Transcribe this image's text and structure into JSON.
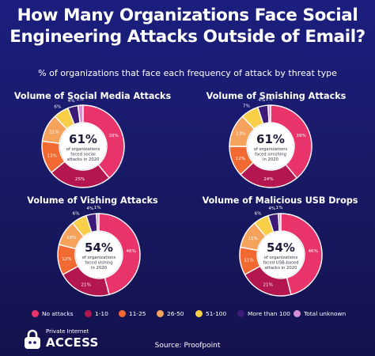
{
  "title": "How Many Organizations Face Social Engineering Attacks Outside of Email?",
  "subtitle": "% of organizations that face each frequency of attack by threat type",
  "source": "Source: Proofpoint",
  "brand": {
    "line1": "Private Internet",
    "line2": "ACCESS"
  },
  "colors": {
    "No attacks": "#e9336b",
    "1-10": "#b4164f",
    "11-25": "#f26a32",
    "26-50": "#f5a25c",
    "51-100": "#f8cf47",
    "More than 100": "#3d1a78",
    "Total unknown": "#d890d5"
  },
  "chart_data": [
    {
      "type": "pie",
      "title": "Volume of Social Media Attacks",
      "categories": [
        "No attacks",
        "1-10",
        "11-25",
        "26-50",
        "51-100",
        "More than 100",
        "Total unknown"
      ],
      "values": [
        39,
        25,
        13,
        11,
        6,
        4,
        2
      ],
      "labels": [
        "39%",
        "25%",
        "13%",
        "11%",
        "6%",
        "4%",
        "2%"
      ],
      "center_value": "61%",
      "center_text": [
        "of organizations",
        "faced social",
        "attacks in 2020"
      ]
    },
    {
      "type": "pie",
      "title": "Volume of Smishing Attacks",
      "categories": [
        "No attacks",
        "1-10",
        "11-25",
        "26-50",
        "51-100",
        "More than 100",
        "Total unknown"
      ],
      "values": [
        39,
        24,
        12,
        13,
        7,
        4,
        1
      ],
      "labels": [
        "39%",
        "24%",
        "12%",
        "13%",
        "7%",
        "4%",
        "1%"
      ],
      "center_value": "61%",
      "center_text": [
        "of organizations",
        "faced smishing",
        "in 2020"
      ]
    },
    {
      "type": "pie",
      "title": "Volume of Vishing Attacks",
      "categories": [
        "No attacks",
        "1-10",
        "11-25",
        "26-50",
        "51-100",
        "More than 100",
        "Total unknown"
      ],
      "values": [
        46,
        21,
        12,
        10,
        6,
        4,
        1
      ],
      "labels": [
        "46%",
        "21%",
        "12%",
        "10%",
        "6%",
        "4%",
        "1%"
      ],
      "center_value": "54%",
      "center_text": [
        "of organizations",
        "faced vishing",
        "in 2020"
      ]
    },
    {
      "type": "pie",
      "title": "Volume of Malicious USB Drops",
      "categories": [
        "No attacks",
        "1-10",
        "11-25",
        "26-50",
        "51-100",
        "More than 100",
        "Total unknown"
      ],
      "values": [
        46,
        21,
        11,
        11,
        6,
        4,
        1
      ],
      "labels": [
        "46%",
        "21%",
        "11%",
        "11%",
        "6%",
        "4%",
        "1%"
      ],
      "center_value": "54%",
      "center_text": [
        "of organizations",
        "faced USB-based",
        "attacks in 2020"
      ]
    }
  ]
}
